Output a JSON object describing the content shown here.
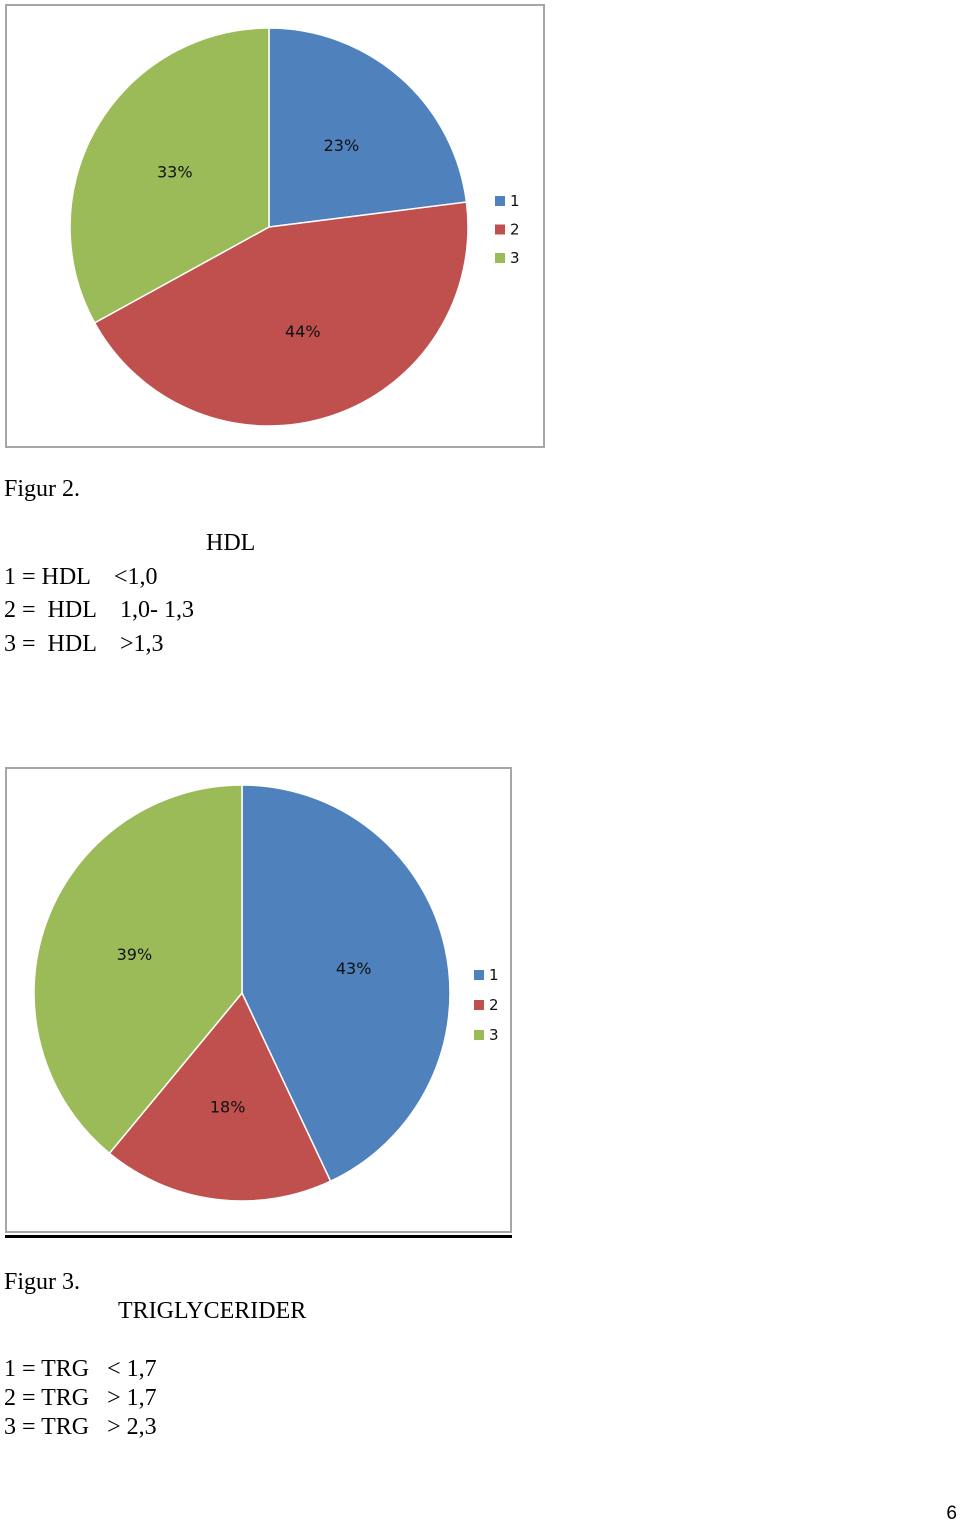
{
  "chart_data": [
    {
      "type": "pie",
      "categories": [
        "1",
        "2",
        "3"
      ],
      "values": [
        23,
        44,
        33
      ],
      "labels": [
        "23%",
        "44%",
        "33%"
      ],
      "colors": [
        "#4f81bd",
        "#c0504d",
        "#9bbb59"
      ],
      "legend": "right",
      "start_angle": "12 o'clock",
      "direction": "clockwise"
    },
    {
      "type": "pie",
      "categories": [
        "1",
        "2",
        "3"
      ],
      "values": [
        43,
        18,
        39
      ],
      "labels": [
        "43%",
        "18%",
        "39%"
      ],
      "colors": [
        "#4f81bd",
        "#c0504d",
        "#9bbb59"
      ],
      "legend": "right",
      "start_angle": "12 o'clock",
      "direction": "clockwise"
    }
  ],
  "figure2": {
    "caption": "Figur 2.",
    "title": "HDL",
    "key": [
      "1 = HDL    <1,0",
      "2 =  HDL    1,0- 1,3",
      "3 =  HDL    >1,3"
    ]
  },
  "figure3": {
    "caption": "Figur 3.",
    "title": "TRIGLYCERIDER",
    "key": [
      "1 = TRG   < 1,7",
      "2 = TRG   > 1,7",
      "3 = TRG   > 2,3"
    ]
  },
  "page_number": "6"
}
